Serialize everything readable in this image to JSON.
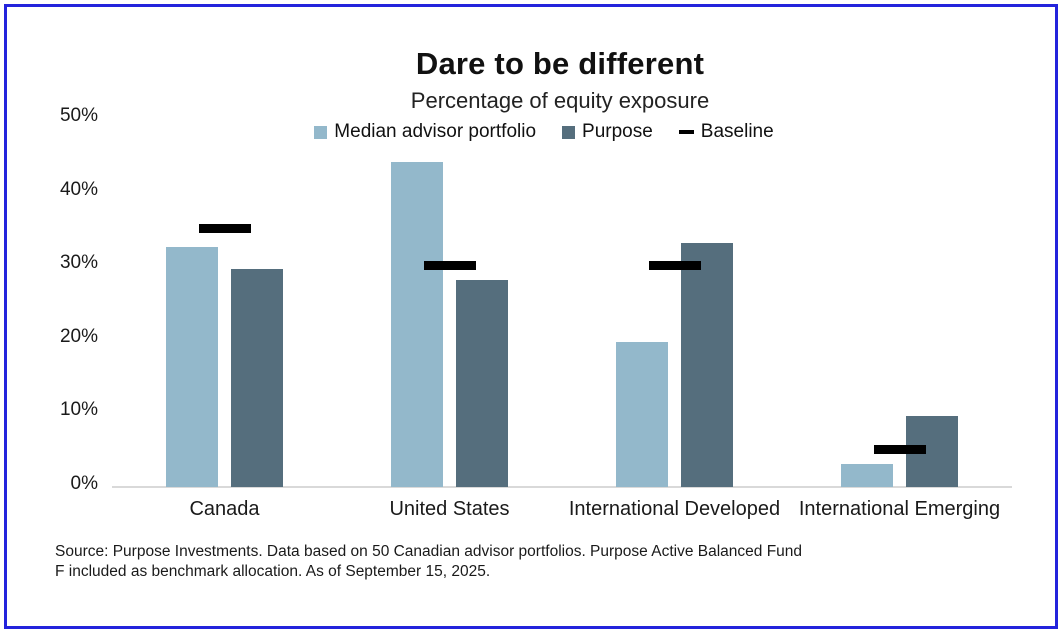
{
  "page": {
    "border_color": "#2323dc",
    "background_color": "#ffffff"
  },
  "chart_data": {
    "type": "bar",
    "title": "Dare to be different",
    "subtitle": "Percentage of equity exposure",
    "categories": [
      "Canada",
      "United States",
      "International Developed",
      "International Emerging"
    ],
    "series": [
      {
        "name": "Median advisor portfolio",
        "color": "#93b8cb",
        "values": [
          32.5,
          44,
          19.5,
          3
        ]
      },
      {
        "name": "Purpose",
        "color": "#556e7d",
        "values": [
          29.5,
          28,
          33,
          9.5
        ]
      }
    ],
    "baseline": {
      "name": "Baseline",
      "color": "#000000",
      "values": [
        35,
        30,
        30,
        5
      ]
    },
    "ylabel": "",
    "xlabel": "",
    "ylim": [
      0,
      50
    ],
    "y_ticks": [
      "0%",
      "10%",
      "20%",
      "30%",
      "40%",
      "50%"
    ],
    "grid": false,
    "legend_position": "top",
    "axis_line_color": "#d9d9d9"
  },
  "source": {
    "line1": "Source: Purpose Investments. Data based on 50 Canadian advisor portfolios. Purpose Active Balanced Fund",
    "line2": "F included as benchmark allocation. As of September 15, 2025."
  }
}
